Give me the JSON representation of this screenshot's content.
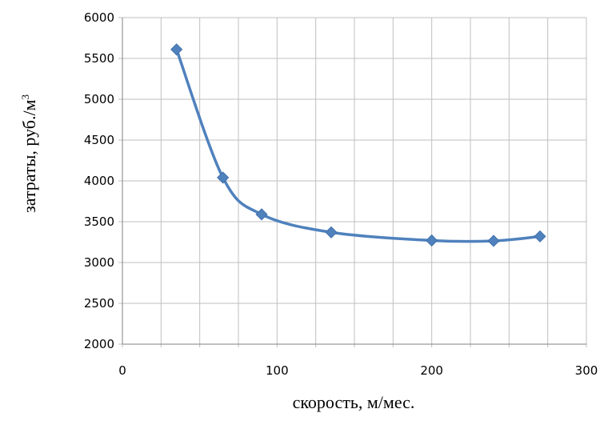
{
  "chart_data": {
    "type": "line",
    "title": "",
    "xlabel": "скорость, м/мес.",
    "ylabel": "затраты, руб./м",
    "ylabel_superscript": "3",
    "xlim": [
      0,
      300
    ],
    "ylim": [
      2000,
      6000
    ],
    "x_ticks": [
      "0",
      "100",
      "200",
      "300"
    ],
    "y_ticks": [
      "2000",
      "2500",
      "3000",
      "3500",
      "4000",
      "4500",
      "5000",
      "5500",
      "6000"
    ],
    "x_minor_step": 25,
    "y_step": 500,
    "grid": true,
    "smooth": true,
    "marker": "diamond",
    "colors": {
      "line": "#4F81BD",
      "marker": "#4F81BD",
      "grid": "#BFBFBF",
      "axis": "#808080"
    },
    "series": [
      {
        "x": [
          35,
          65,
          90,
          135,
          200,
          240,
          270
        ],
        "y": [
          5610,
          4040,
          3590,
          3370,
          3270,
          3265,
          3320
        ]
      }
    ]
  }
}
